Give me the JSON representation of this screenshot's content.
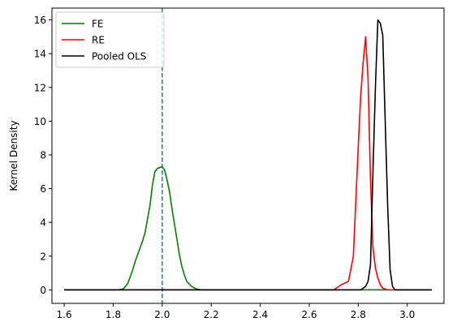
{
  "chart_data": {
    "type": "line",
    "title": "",
    "xlabel": "",
    "ylabel": "Kernel Density",
    "xlim": [
      1.55,
      3.15
    ],
    "ylim": [
      -0.8,
      16.7
    ],
    "xticks": [
      1.6,
      1.8,
      2.0,
      2.2,
      2.4,
      2.6,
      2.8,
      3.0
    ],
    "xtick_labels": [
      "1.6",
      "1.8",
      "2.0",
      "2.2",
      "2.4",
      "2.6",
      "2.8",
      "3.0"
    ],
    "yticks": [
      0,
      2,
      4,
      6,
      8,
      10,
      12,
      14,
      16
    ],
    "ytick_labels": [
      "0",
      "2",
      "4",
      "6",
      "8",
      "10",
      "12",
      "14",
      "16"
    ],
    "grid": false,
    "legend": "top-left",
    "reference_line": {
      "x": 2.0,
      "style": "dashed",
      "color": "#1f77b4"
    },
    "series": [
      {
        "name": "FE",
        "color": "#008000",
        "x": [
          1.6,
          1.82,
          1.84,
          1.85,
          1.86,
          1.87,
          1.88,
          1.89,
          1.9,
          1.91,
          1.92,
          1.93,
          1.94,
          1.95,
          1.96,
          1.97,
          1.98,
          1.99,
          2.0,
          2.01,
          2.02,
          2.03,
          2.04,
          2.05,
          2.06,
          2.07,
          2.08,
          2.09,
          2.1,
          2.12,
          2.14,
          2.16,
          2.2,
          3.1
        ],
        "y": [
          0,
          0,
          0.05,
          0.2,
          0.4,
          0.8,
          1.2,
          1.7,
          2.1,
          2.5,
          2.9,
          3.4,
          4.2,
          5.0,
          6.2,
          7.0,
          7.2,
          7.25,
          7.3,
          7.1,
          6.5,
          5.8,
          4.8,
          3.9,
          3.0,
          2.1,
          1.4,
          0.9,
          0.5,
          0.2,
          0.05,
          0,
          0,
          0
        ]
      },
      {
        "name": "RE",
        "color": "#ff0000",
        "x": [
          1.6,
          2.7,
          2.73,
          2.76,
          2.78,
          2.8,
          2.81,
          2.82,
          2.83,
          2.84,
          2.85,
          2.86,
          2.87,
          2.88,
          2.89,
          2.9,
          2.92,
          2.95,
          3.1
        ],
        "y": [
          0,
          0,
          0.3,
          0.5,
          2.0,
          8.5,
          11.5,
          13.5,
          15.0,
          12.5,
          6.5,
          2.5,
          1.3,
          0.7,
          0.3,
          0.1,
          0,
          0,
          0
        ]
      },
      {
        "name": "Pooled OLS",
        "color": "#000000",
        "x": [
          1.6,
          2.81,
          2.83,
          2.84,
          2.85,
          2.86,
          2.87,
          2.88,
          2.89,
          2.9,
          2.91,
          2.92,
          2.93,
          2.94,
          2.95,
          2.97,
          3.1
        ],
        "y": [
          0,
          0,
          0.2,
          0.5,
          1.5,
          7.0,
          12.0,
          16.0,
          15.8,
          15.1,
          10.0,
          5.0,
          1.2,
          0.2,
          0,
          0,
          0
        ]
      }
    ]
  }
}
